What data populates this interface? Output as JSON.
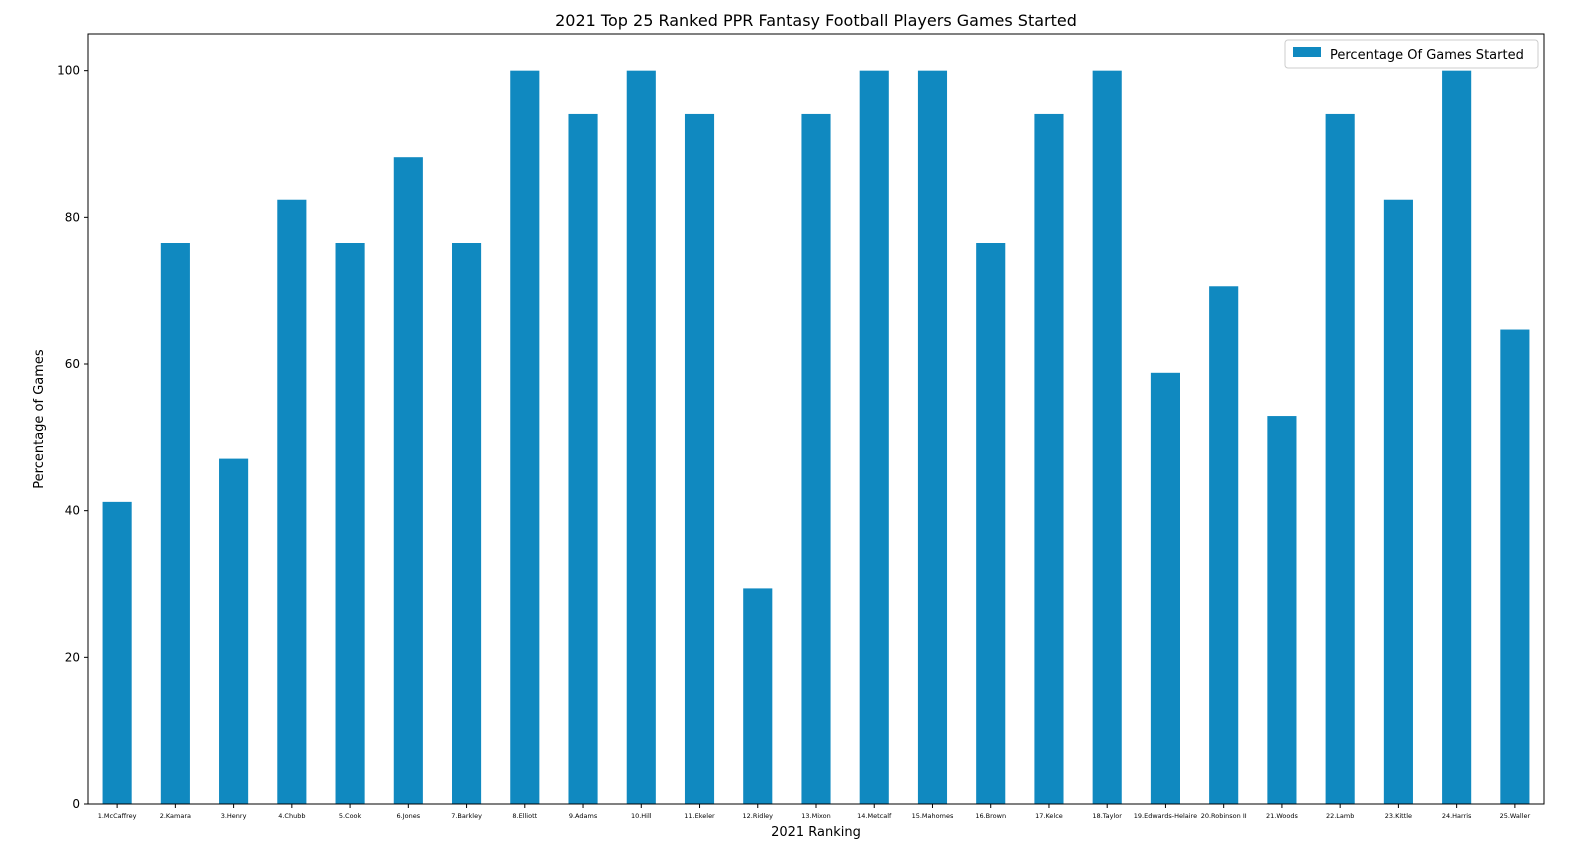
{
  "chart_data": {
    "type": "bar",
    "title": "2021 Top 25 Ranked PPR Fantasy Football Players Games Started",
    "xlabel": "2021 Ranking",
    "ylabel": "Percentage of Games",
    "categories": [
      "1.McCaffrey",
      "2.Kamara",
      "3.Henry",
      "4.Chubb",
      "5.Cook",
      "6.Jones",
      "7.Barkley",
      "8.Elliott",
      "9.Adams",
      "10.Hill",
      "11.Ekeler",
      "12.Ridley",
      "13.Mixon",
      "14.Metcalf",
      "15.Mahomes",
      "16.Brown",
      "17.Kelce",
      "18.Taylor",
      "19.Edwards-Helaire",
      "20.Robinson II",
      "21.Woods",
      "22.Lamb",
      "23.Kittle",
      "24.Harris",
      "25.Waller"
    ],
    "series": [
      {
        "name": "Percentage Of Games Started",
        "color": "#1089c0",
        "values": [
          41.2,
          76.5,
          47.1,
          82.4,
          76.5,
          88.2,
          76.5,
          100,
          94.1,
          100,
          94.1,
          29.4,
          94.1,
          100,
          100,
          76.5,
          94.1,
          100,
          58.8,
          70.6,
          52.9,
          94.1,
          82.4,
          100,
          64.7
        ]
      }
    ],
    "ylim": [
      0,
      105
    ],
    "yticks": [
      0,
      20,
      40,
      60,
      80,
      100
    ],
    "legend_position": "top-right",
    "grid": false
  }
}
